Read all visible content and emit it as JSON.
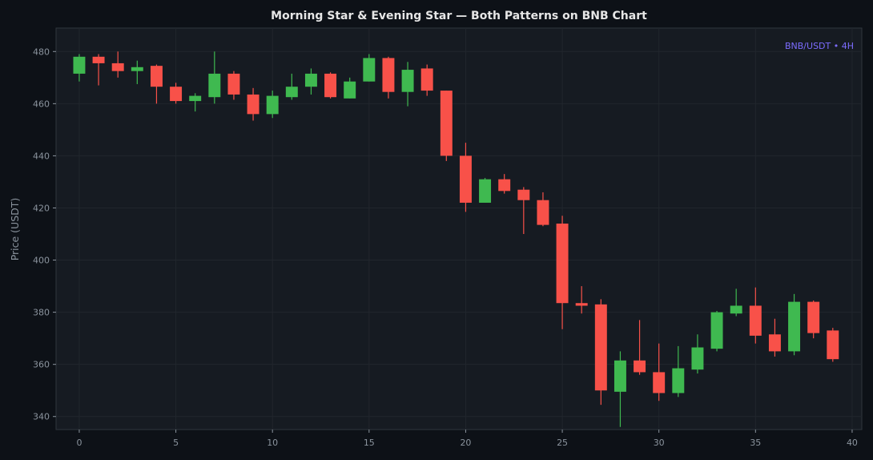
{
  "chart_data": {
    "type": "candlestick",
    "title": "Morning Star & Evening Star — Both Patterns on BNB Chart",
    "ylabel": "Price (USDT)",
    "xlabel": "",
    "annotation": "BNB/USDT • 4H",
    "xlim": [
      -1.2,
      40.5
    ],
    "ylim": [
      335,
      489
    ],
    "xticks": [
      0,
      5,
      10,
      15,
      20,
      25,
      30,
      35,
      40
    ],
    "yticks": [
      340,
      360,
      380,
      400,
      420,
      440,
      460,
      480
    ],
    "grid": true,
    "colors": {
      "up": "#3fb950",
      "down": "#f85149",
      "background": "#161b22",
      "page": "#0d1117",
      "grid": "#21262d"
    },
    "candles": [
      {
        "x": 0,
        "open": 471.5,
        "high": 479,
        "low": 468.5,
        "close": 478
      },
      {
        "x": 1,
        "open": 478,
        "high": 479,
        "low": 467,
        "close": 475.5
      },
      {
        "x": 2,
        "open": 475.5,
        "high": 480,
        "low": 470,
        "close": 472.5
      },
      {
        "x": 3,
        "open": 472.5,
        "high": 476.5,
        "low": 467.5,
        "close": 474
      },
      {
        "x": 4,
        "open": 474.5,
        "high": 475,
        "low": 460,
        "close": 466.5
      },
      {
        "x": 5,
        "open": 466.5,
        "high": 468,
        "low": 460,
        "close": 461
      },
      {
        "x": 6,
        "open": 461,
        "high": 464,
        "low": 457,
        "close": 463
      },
      {
        "x": 7,
        "open": 462.5,
        "high": 480,
        "low": 460,
        "close": 471.5
      },
      {
        "x": 8,
        "open": 471.5,
        "high": 472.5,
        "low": 461.5,
        "close": 463.5
      },
      {
        "x": 9,
        "open": 463.5,
        "high": 466,
        "low": 453.5,
        "close": 456
      },
      {
        "x": 10,
        "open": 456,
        "high": 465,
        "low": 454.5,
        "close": 463
      },
      {
        "x": 11,
        "open": 462.5,
        "high": 471.5,
        "low": 461.5,
        "close": 466.5
      },
      {
        "x": 12,
        "open": 466.5,
        "high": 473.5,
        "low": 463.5,
        "close": 471.5
      },
      {
        "x": 13,
        "open": 471.5,
        "high": 472,
        "low": 462,
        "close": 462.5
      },
      {
        "x": 14,
        "open": 462,
        "high": 470,
        "low": 462,
        "close": 468.5
      },
      {
        "x": 15,
        "open": 468.5,
        "high": 479,
        "low": 468.5,
        "close": 477.5
      },
      {
        "x": 16,
        "open": 477.5,
        "high": 478,
        "low": 462,
        "close": 464.5
      },
      {
        "x": 17,
        "open": 464.5,
        "high": 476,
        "low": 459,
        "close": 473
      },
      {
        "x": 18,
        "open": 473.5,
        "high": 475,
        "low": 463,
        "close": 465
      },
      {
        "x": 19,
        "open": 465,
        "high": 465,
        "low": 438,
        "close": 440
      },
      {
        "x": 20,
        "open": 440,
        "high": 445,
        "low": 418.5,
        "close": 422
      },
      {
        "x": 21,
        "open": 422,
        "high": 431.5,
        "low": 422,
        "close": 431
      },
      {
        "x": 22,
        "open": 431,
        "high": 433,
        "low": 425.5,
        "close": 426.5
      },
      {
        "x": 23,
        "open": 427,
        "high": 428,
        "low": 410,
        "close": 423
      },
      {
        "x": 24,
        "open": 423,
        "high": 426,
        "low": 413,
        "close": 413.5
      },
      {
        "x": 25,
        "open": 414,
        "high": 417,
        "low": 373.5,
        "close": 383.5
      },
      {
        "x": 26,
        "open": 383.5,
        "high": 390,
        "low": 379.5,
        "close": 382.5
      },
      {
        "x": 27,
        "open": 383,
        "high": 385,
        "low": 344.5,
        "close": 350
      },
      {
        "x": 28,
        "open": 349.5,
        "high": 365,
        "low": 336,
        "close": 361.5
      },
      {
        "x": 29,
        "open": 361.5,
        "high": 377,
        "low": 356,
        "close": 357
      },
      {
        "x": 30,
        "open": 357,
        "high": 368,
        "low": 346,
        "close": 349
      },
      {
        "x": 31,
        "open": 349,
        "high": 367,
        "low": 347.5,
        "close": 358.5
      },
      {
        "x": 32,
        "open": 358,
        "high": 371.5,
        "low": 356.5,
        "close": 366.5
      },
      {
        "x": 33,
        "open": 366,
        "high": 380.5,
        "low": 365,
        "close": 380
      },
      {
        "x": 34,
        "open": 379.5,
        "high": 389,
        "low": 378.5,
        "close": 382.5
      },
      {
        "x": 35,
        "open": 382.5,
        "high": 389.5,
        "low": 368,
        "close": 371
      },
      {
        "x": 36,
        "open": 371.5,
        "high": 377.5,
        "low": 363,
        "close": 365
      },
      {
        "x": 37,
        "open": 365,
        "high": 387,
        "low": 363.5,
        "close": 384
      },
      {
        "x": 38,
        "open": 384,
        "high": 384.5,
        "low": 370,
        "close": 372
      },
      {
        "x": 39,
        "open": 373,
        "high": 374,
        "low": 361,
        "close": 362
      }
    ]
  }
}
